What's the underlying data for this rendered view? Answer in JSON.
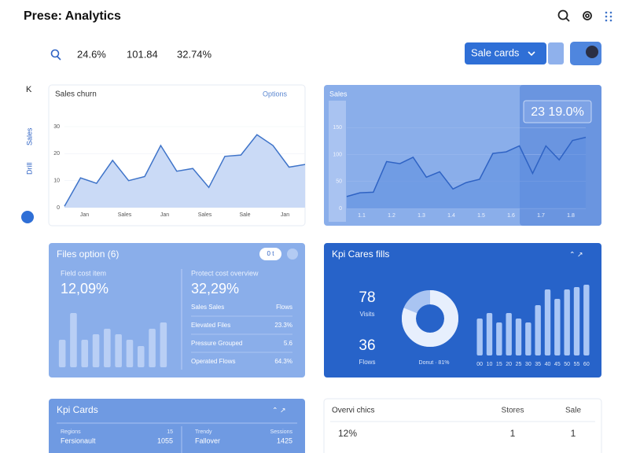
{
  "header": {
    "title": "Prese: Analytics"
  },
  "toolbar": {
    "stats": [
      "24.6%",
      "101.84",
      "32.74%"
    ],
    "button": "Sale cards"
  },
  "sidebar": {
    "items": [
      "K",
      "Sales",
      "Drill"
    ]
  },
  "sales_chart": {
    "title": "Sales churn",
    "dropdown": "Options",
    "ylim": [
      0,
      30
    ],
    "yticks": [
      0,
      10,
      20,
      30
    ],
    "xlabels": [
      "Jan",
      "Sales",
      "Jan",
      "Sales",
      "Sale",
      "Jan"
    ],
    "values": [
      0.5,
      11,
      9,
      17.5,
      10,
      11.5,
      23,
      13.5,
      14.5,
      7.5,
      19,
      19.5,
      27,
      23,
      15,
      16
    ],
    "color": "#3f74c9"
  },
  "trend_chart": {
    "title": "Sales",
    "highlight": "23 19.0%",
    "ylim": [
      0,
      200
    ],
    "yticks": [
      0,
      50,
      100,
      150
    ],
    "xlabels": [
      "1.1",
      "1.2",
      "1.3",
      "1.4",
      "1.5",
      "1.6",
      "1.7",
      "1.8"
    ],
    "values": [
      22,
      29,
      30,
      87,
      83,
      95,
      58,
      68,
      36,
      48,
      54,
      102,
      105,
      116,
      65,
      116,
      90,
      126,
      132
    ],
    "color": "#2f63c4"
  },
  "files_card": {
    "title": "Files option (6)",
    "toggle": "0 t",
    "left_label": "Field cost item",
    "left_value": "12,09%",
    "ylim": [
      0,
      80
    ],
    "bars": [
      35,
      69,
      35,
      42,
      49,
      42,
      35,
      27,
      49,
      57
    ],
    "right_label": "Protect cost overview",
    "right_value": "32,29%",
    "rows": [
      [
        "Sales Sales",
        "Flows"
      ],
      [
        "Elevated Files",
        "23.3%"
      ],
      [
        "Pressure Grouped",
        "5.6"
      ],
      [
        "Operated Flows",
        "64.3%"
      ]
    ]
  },
  "kpi_card": {
    "title": "Kpi Cares fills",
    "metrics": [
      {
        "value": 78,
        "label": "Visits"
      },
      {
        "value": 36,
        "label": "Flows"
      }
    ],
    "donut_value": 81,
    "donut_label": "Donut · 81%",
    "ylim": [
      0,
      100
    ],
    "bars": [
      47,
      54,
      42,
      54,
      47,
      42,
      64,
      84,
      72,
      84,
      87,
      90
    ],
    "xlabels": [
      "00",
      "10",
      "15",
      "20",
      "25",
      "30",
      "35",
      "40",
      "45",
      "50",
      "55",
      "60"
    ]
  },
  "kpi_cards": {
    "title": "Kpi Cards",
    "cells": [
      [
        "Regions",
        "15"
      ],
      [
        "Fersionault",
        "1055"
      ],
      [
        "Trendy",
        "Sessions"
      ],
      [
        "Fallover",
        "1425"
      ]
    ]
  },
  "overview_table": {
    "title": "Overvi chics",
    "headers": [
      "Stores",
      "Sale"
    ],
    "rows": [
      [
        "12%",
        "1",
        "1"
      ]
    ]
  }
}
